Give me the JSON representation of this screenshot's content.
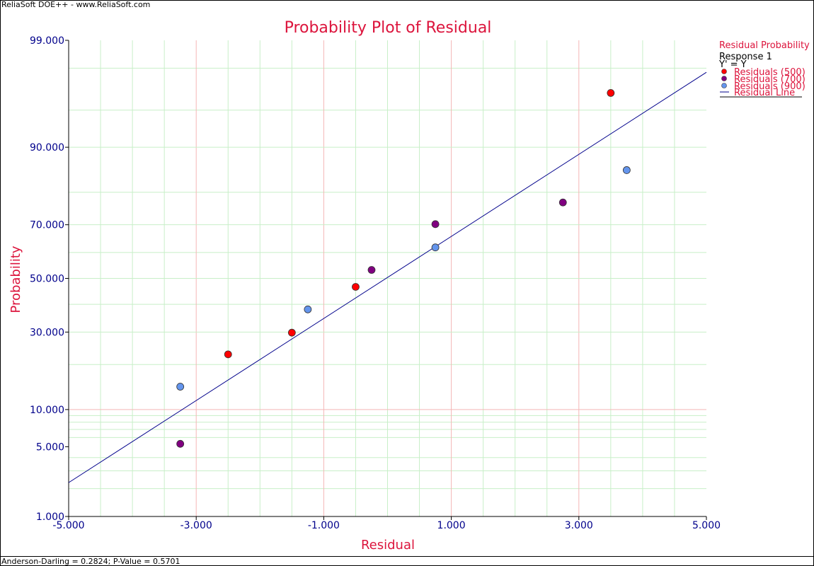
{
  "window": {
    "credit": "ReliaSoft DOE++ - www.ReliaSoft.com",
    "footer_stat": "Anderson-Darling = 0.2824; P-Value = 0.5701"
  },
  "colors": {
    "title": "#dc143c",
    "ticks": "#00008b",
    "major_grid": "#f4b6b6",
    "minor_grid": "#c8efc8",
    "line": "#00008b",
    "series_500": "#ff0000",
    "series_700": "#800080",
    "series_900": "#6495ed"
  },
  "legend": {
    "heading": "Residual Probability",
    "subheading": "Response 1",
    "transform": "Y' = Y",
    "line_label": "Residual Line"
  },
  "chart_data": {
    "type": "scatter",
    "title": "Probability Plot of Residual",
    "xlabel": "Residual",
    "ylabel": "Probability",
    "xlim": [
      -5,
      5
    ],
    "ylim": [
      1,
      99
    ],
    "y_scale": "normal-probability",
    "x_ticks": [
      -5,
      -3,
      -1,
      1,
      3,
      5
    ],
    "x_tick_labels": [
      "-5.000",
      "-3.000",
      "-1.000",
      "1.000",
      "3.000",
      "5.000"
    ],
    "y_ticks": [
      1,
      5,
      10,
      30,
      50,
      70,
      90,
      99
    ],
    "y_tick_labels": [
      "1.000",
      "5.000",
      "10.000",
      "30.000",
      "50.000",
      "70.000",
      "90.000",
      "99.000"
    ],
    "legend_position": "right",
    "grid": true,
    "series": [
      {
        "name": "Residuals (500)",
        "color": "#ff0000",
        "points": [
          [
            -2.5,
            22.9
          ],
          [
            -1.5,
            29.8
          ],
          [
            -0.5,
            46.7
          ],
          [
            3.5,
            96.5
          ]
        ]
      },
      {
        "name": "Residuals (700)",
        "color": "#800080",
        "points": [
          [
            -3.25,
            5.3
          ],
          [
            -0.25,
            53.3
          ],
          [
            0.75,
            70.2
          ],
          [
            2.75,
            77.1
          ]
        ]
      },
      {
        "name": "Residuals (900)",
        "color": "#6495ed",
        "points": [
          [
            -3.25,
            14.5
          ],
          [
            -1.25,
            38.1
          ],
          [
            0.75,
            61.9
          ],
          [
            3.75,
            85.5
          ]
        ]
      }
    ],
    "fit_line": {
      "name": "Residual Line",
      "points": [
        [
          -5,
          2.3
        ],
        [
          5,
          97.8
        ]
      ]
    }
  }
}
